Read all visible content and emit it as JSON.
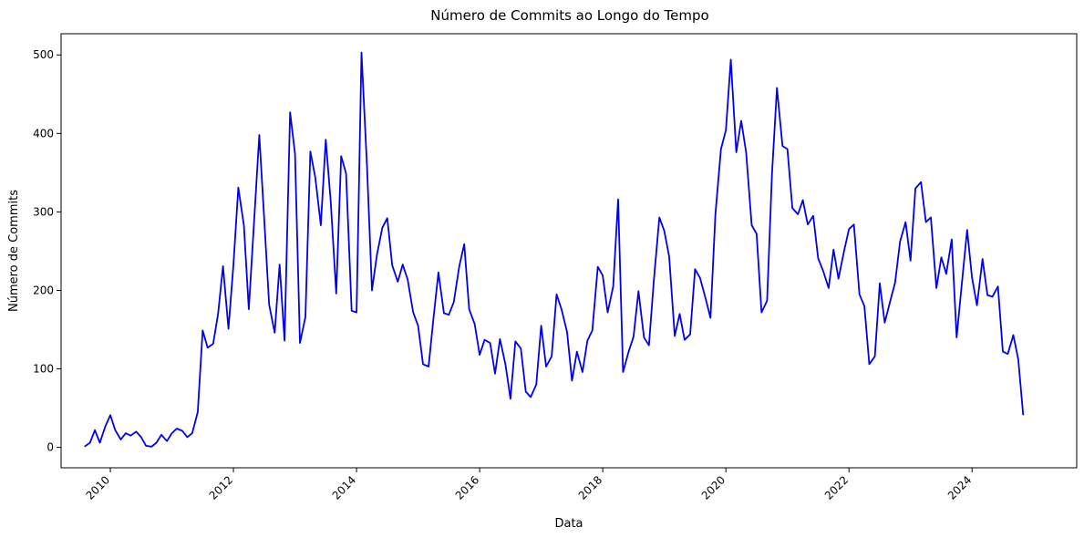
{
  "chart_data": {
    "type": "line",
    "title": "Número de Commits ao Longo do Tempo",
    "xlabel": "Data",
    "ylabel": "Número de Commits",
    "xlim": [
      2009.2,
      2025.7
    ],
    "ylim": [
      -26,
      527
    ],
    "xticks": [
      2010,
      2012,
      2014,
      2016,
      2018,
      2020,
      2022,
      2024
    ],
    "xtick_labels": [
      "2010",
      "2012",
      "2014",
      "2016",
      "2018",
      "2020",
      "2022",
      "2024"
    ],
    "yticks": [
      0,
      100,
      200,
      300,
      400,
      500
    ],
    "ytick_labels": [
      "0",
      "100",
      "200",
      "300",
      "400",
      "500"
    ],
    "grid": false,
    "series": [
      {
        "color": "#0000ee",
        "x": [
          2009.58,
          2009.67,
          2009.75,
          2009.83,
          2009.92,
          2010.0,
          2010.08,
          2010.17,
          2010.25,
          2010.33,
          2010.42,
          2010.5,
          2010.58,
          2010.67,
          2010.75,
          2010.83,
          2010.92,
          2011.0,
          2011.08,
          2011.17,
          2011.25,
          2011.33,
          2011.42,
          2011.5,
          2011.58,
          2011.67,
          2011.75,
          2011.83,
          2011.92,
          2012.0,
          2012.08,
          2012.17,
          2012.25,
          2012.33,
          2012.42,
          2012.5,
          2012.58,
          2012.67,
          2012.75,
          2012.83,
          2012.92,
          2013.0,
          2013.08,
          2013.17,
          2013.25,
          2013.33,
          2013.42,
          2013.5,
          2013.58,
          2013.67,
          2013.75,
          2013.83,
          2013.92,
          2014.0,
          2014.08,
          2014.17,
          2014.25,
          2014.33,
          2014.42,
          2014.5,
          2014.58,
          2014.67,
          2014.75,
          2014.83,
          2014.92,
          2015.0,
          2015.08,
          2015.17,
          2015.25,
          2015.33,
          2015.42,
          2015.5,
          2015.58,
          2015.67,
          2015.75,
          2015.83,
          2015.92,
          2016.0,
          2016.08,
          2016.17,
          2016.25,
          2016.33,
          2016.42,
          2016.5,
          2016.58,
          2016.67,
          2016.75,
          2016.83,
          2016.92,
          2017.0,
          2017.08,
          2017.17,
          2017.25,
          2017.33,
          2017.42,
          2017.5,
          2017.58,
          2017.67,
          2017.75,
          2017.83,
          2017.92,
          2018.0,
          2018.08,
          2018.17,
          2018.25,
          2018.33,
          2018.42,
          2018.5,
          2018.58,
          2018.67,
          2018.75,
          2018.83,
          2018.92,
          2019.0,
          2019.08,
          2019.17,
          2019.25,
          2019.33,
          2019.42,
          2019.5,
          2019.58,
          2019.67,
          2019.75,
          2019.83,
          2019.92,
          2020.0,
          2020.08,
          2020.17,
          2020.25,
          2020.33,
          2020.42,
          2020.5,
          2020.58,
          2020.67,
          2020.75,
          2020.83,
          2020.92,
          2021.0,
          2021.08,
          2021.17,
          2021.25,
          2021.33,
          2021.42,
          2021.5,
          2021.58,
          2021.67,
          2021.75,
          2021.83,
          2021.92,
          2022.0,
          2022.08,
          2022.17,
          2022.25,
          2022.33,
          2022.42,
          2022.5,
          2022.58,
          2022.67,
          2022.75,
          2022.83,
          2022.92,
          2023.0,
          2023.08,
          2023.17,
          2023.25,
          2023.33,
          2023.42,
          2023.5,
          2023.58,
          2023.67,
          2023.75,
          2023.83,
          2023.92,
          2024.0,
          2024.08,
          2024.17,
          2024.25,
          2024.33,
          2024.42,
          2024.5,
          2024.58,
          2024.67,
          2024.75,
          2024.83
        ],
        "y": [
          1,
          6,
          22,
          6,
          27,
          41,
          22,
          10,
          18,
          15,
          20,
          13,
          2,
          1,
          6,
          16,
          8,
          18,
          24,
          21,
          13,
          18,
          45,
          149,
          127,
          132,
          170,
          231,
          151,
          232,
          331,
          283,
          176,
          280,
          398,
          291,
          182,
          146,
          233,
          136,
          427,
          374,
          133,
          166,
          377,
          344,
          283,
          392,
          314,
          196,
          371,
          349,
          174,
          172,
          503,
          357,
          200,
          245,
          280,
          292,
          232,
          211,
          233,
          214,
          172,
          155,
          106,
          103,
          165,
          223,
          171,
          169,
          185,
          231,
          259,
          176,
          157,
          118,
          137,
          133,
          94,
          138,
          105,
          62,
          135,
          126,
          71,
          64,
          80,
          155,
          103,
          116,
          195,
          176,
          147,
          85,
          122,
          96,
          136,
          149,
          230,
          219,
          172,
          205,
          316,
          96,
          122,
          141,
          199,
          140,
          130,
          213,
          293,
          276,
          243,
          142,
          170,
          137,
          144,
          227,
          216,
          190,
          165,
          297,
          380,
          404,
          494,
          376,
          416,
          376,
          283,
          272,
          172,
          187,
          349,
          458,
          384,
          380,
          305,
          297,
          315,
          284,
          295,
          241,
          225,
          203,
          252,
          215,
          250,
          278,
          284,
          195,
          180,
          106,
          116,
          209,
          159,
          186,
          210,
          262,
          287,
          238,
          330,
          338,
          287,
          293,
          203,
          242,
          221,
          265,
          140,
          205,
          277,
          216,
          181,
          240,
          194,
          192,
          205,
          122,
          119,
          143,
          112,
          41
        ]
      }
    ]
  }
}
